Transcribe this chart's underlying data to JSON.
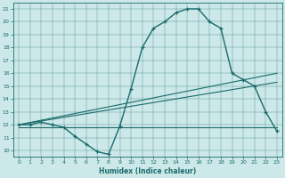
{
  "xlabel": "Humidex (Indice chaleur)",
  "bg_color": "#cce8e8",
  "line_color": "#1a6b6b",
  "xlim": [
    -0.5,
    23.5
  ],
  "ylim": [
    9.5,
    21.5
  ],
  "xticks": [
    0,
    1,
    2,
    3,
    4,
    5,
    6,
    7,
    8,
    9,
    10,
    11,
    12,
    13,
    14,
    15,
    16,
    17,
    18,
    19,
    20,
    21,
    22,
    23
  ],
  "yticks": [
    10,
    11,
    12,
    13,
    14,
    15,
    16,
    17,
    18,
    19,
    20,
    21
  ],
  "line1_x": [
    0,
    1,
    2,
    3,
    4,
    5,
    6,
    7,
    8,
    9,
    10,
    11,
    12,
    13,
    14,
    15,
    16,
    17,
    18,
    19,
    20,
    21,
    22,
    23
  ],
  "line1_y": [
    12.0,
    12.0,
    12.2,
    12.0,
    11.8,
    11.1,
    10.5,
    9.9,
    9.7,
    11.9,
    14.8,
    18.0,
    19.5,
    20.0,
    20.7,
    21.0,
    21.0,
    20.0,
    19.5,
    16.0,
    15.5,
    15.0,
    13.0,
    11.5
  ],
  "line2_x": [
    0,
    23
  ],
  "line2_y": [
    12.0,
    16.0
  ],
  "line3_x": [
    0,
    23
  ],
  "line3_y": [
    12.0,
    15.3
  ],
  "line4_x": [
    0,
    23
  ],
  "line4_y": [
    11.8,
    11.8
  ]
}
